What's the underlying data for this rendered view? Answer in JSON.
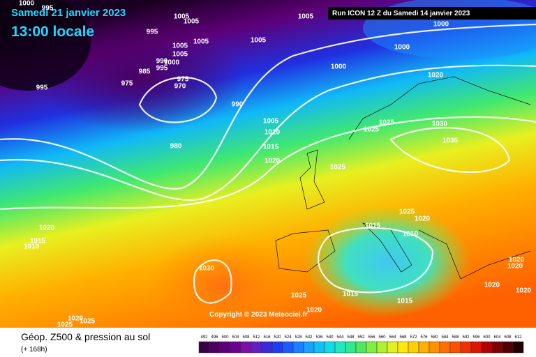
{
  "header": {
    "date": "Samedi 21 janvier 2023",
    "time": "13:00 locale",
    "run": "Run ICON 12 Z du Samedi 14 janvier 2023"
  },
  "copyright": "Copyright © 2023 Meteociel.fr",
  "legend": {
    "title": "Géop. Z500 & pression au sol",
    "subtitle": "(+ 168h)",
    "scale": {
      "values": [
        492,
        496,
        500,
        504,
        508,
        512,
        516,
        520,
        524,
        528,
        532,
        536,
        540,
        544,
        548,
        552,
        556,
        560,
        564,
        568,
        572,
        576,
        580,
        584,
        588,
        592,
        596,
        600,
        604,
        608,
        612
      ],
      "colors": [
        "#3a0046",
        "#4b0060",
        "#5d0078",
        "#6a0090",
        "#7a10a8",
        "#6020c0",
        "#3a2ad8",
        "#1f3cf0",
        "#1a5cff",
        "#1a80ff",
        "#1aa0ff",
        "#10c0f8",
        "#10dce8",
        "#20e8c0",
        "#30e890",
        "#50e860",
        "#80f040",
        "#b0f030",
        "#e0f020",
        "#ffe810",
        "#ffd000",
        "#ffb000",
        "#ff9000",
        "#ff7000",
        "#ff5000",
        "#f03000",
        "#d81800",
        "#b00000",
        "#800000",
        "#500000",
        "#200000"
      ]
    }
  },
  "isobar_labels": [
    "1000",
    "995",
    "1005",
    "1005",
    "1005",
    "1000",
    "995",
    "1005",
    "1005",
    "1005",
    "1000",
    "1005",
    "990",
    "1000",
    "1000",
    "995",
    "985",
    "1020",
    "975",
    "995",
    "975",
    "970",
    "990",
    "1005",
    "1025",
    "1030",
    "1010",
    "1025",
    "1035",
    "980",
    "1015",
    "1020",
    "1025",
    "1025",
    "1020",
    "1020",
    "1015",
    "1010",
    "1015",
    "1010",
    "1030",
    "1020",
    "1020",
    "1020",
    "1020",
    "1015",
    "1025",
    "1015",
    "1020",
    "1020",
    "1025",
    "1025"
  ]
}
